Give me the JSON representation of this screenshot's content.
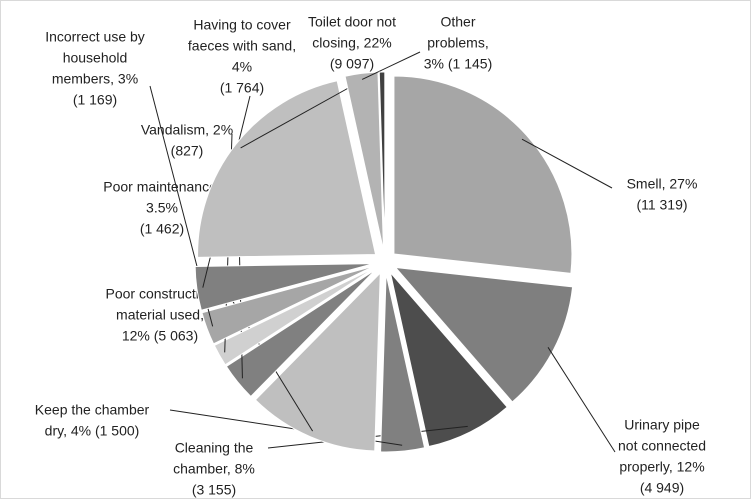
{
  "chart_data": {
    "type": "pie",
    "labels": [
      [
        "Smell, 27%",
        "(11 319)"
      ],
      [
        "Urinary pipe",
        "not connected",
        "properly, 12%",
        "(4 949)"
      ],
      [
        "Cleaning the",
        "chamber, 8%",
        "(3 155)"
      ],
      [
        "Keep the chamber",
        "dry, 4% (1 500)"
      ],
      [
        "Poor construction",
        "material used,",
        "12% (5 063)"
      ],
      [
        "Poor maintenance,",
        "3.5%",
        "(1 462)"
      ],
      [
        "Vandalism, 2%",
        "(827)"
      ],
      [
        "Incorrect use by",
        "household",
        "members, 3%",
        "(1 169)"
      ],
      [
        "Having to cover",
        "faeces with sand,",
        "4%",
        "(1 764)"
      ],
      [
        "Toilet door not",
        "closing, 22%",
        "(9 097)"
      ],
      [
        "Other",
        "problems,",
        "3% (1 145)"
      ],
      null
    ],
    "values": [
      27,
      12,
      8,
      4,
      12,
      3.5,
      2,
      3,
      4,
      22,
      3,
      0.5
    ],
    "colors": [
      "#a6a6a6",
      "#7f7f7f",
      "#4d4d4d",
      "#808080",
      "#bfbfbf",
      "#808080",
      "#d0d0d0",
      "#a6a6a6",
      "#808080",
      "#bfbfbf",
      "#b3b3b3",
      "#404040"
    ]
  }
}
